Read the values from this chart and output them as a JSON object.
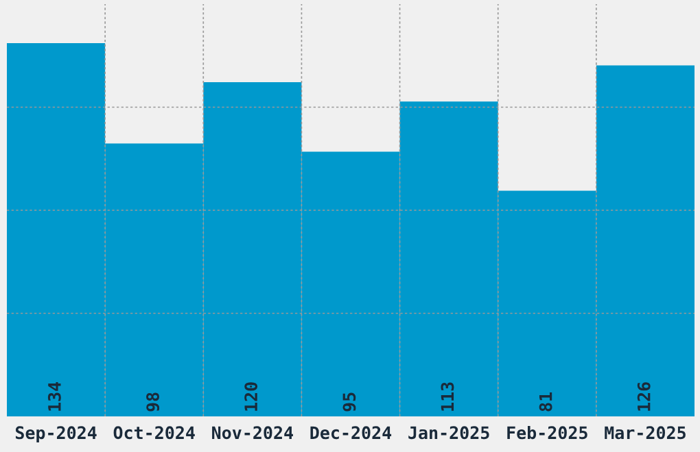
{
  "chart_data": {
    "type": "bar",
    "categories": [
      "Sep-2024",
      "Oct-2024",
      "Nov-2024",
      "Dec-2024",
      "Jan-2025",
      "Feb-2025",
      "Mar-2025"
    ],
    "values": [
      134,
      98,
      120,
      95,
      113,
      81,
      126
    ],
    "color": "#0099cc",
    "ylim": [
      0,
      148
    ],
    "yticks": [
      {
        "value": 37,
        "label": null
      },
      {
        "value": 74,
        "label": null
      },
      {
        "value": 111,
        "label": null
      }
    ],
    "tick_labels": "x",
    "grid": true,
    "data_labels": true
  }
}
